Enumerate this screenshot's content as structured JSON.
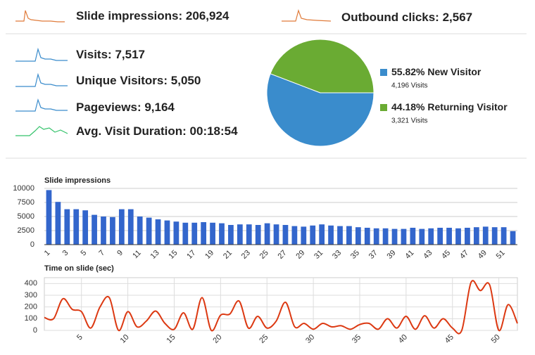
{
  "header": [
    {
      "label": "Slide impressions:",
      "value": "206,924"
    },
    {
      "label": "Outbound clicks:",
      "value": "2,567"
    }
  ],
  "metrics": [
    {
      "label": "Visits:",
      "value": "7,517"
    },
    {
      "label": "Unique Visitors:",
      "value": "5,050"
    },
    {
      "label": "Pageviews:",
      "value": "9,164"
    },
    {
      "label": "Avg. Visit Duration:",
      "value": "00:18:54"
    }
  ],
  "chart_data": [
    {
      "type": "pie",
      "categories": [
        "New Visitor",
        "Returning Visitor"
      ],
      "values": [
        55.82,
        44.18
      ],
      "value_labels": [
        "55.82%",
        "44.18%"
      ],
      "notes": [
        "4,196 Visits",
        "3,321 Visits"
      ],
      "colors": [
        "#3a8ccc",
        "#6aab33"
      ]
    },
    {
      "type": "bar",
      "title": "Slide impressions",
      "categories": [
        1,
        null,
        3,
        null,
        5,
        null,
        7,
        null,
        9,
        null,
        11,
        null,
        13,
        null,
        15,
        null,
        17,
        null,
        19,
        null,
        21,
        null,
        23,
        null,
        25,
        null,
        27,
        null,
        29,
        null,
        31,
        null,
        33,
        null,
        35,
        null,
        37,
        null,
        39,
        null,
        41,
        null,
        43,
        null,
        45,
        null,
        47,
        null,
        49,
        null,
        51,
        null
      ],
      "values": [
        9700,
        7600,
        6300,
        6300,
        6100,
        5300,
        5000,
        4900,
        6300,
        6300,
        5000,
        4800,
        4500,
        4300,
        4100,
        3900,
        3900,
        4000,
        3900,
        3800,
        3500,
        3600,
        3600,
        3500,
        3800,
        3600,
        3500,
        3300,
        3200,
        3400,
        3600,
        3400,
        3300,
        3300,
        3100,
        3000,
        2900,
        2900,
        2800,
        2800,
        3000,
        2800,
        2900,
        3000,
        3000,
        2900,
        3000,
        3100,
        3200,
        3100,
        3100,
        2400
      ],
      "color": "#3366cc",
      "ylim": [
        0,
        10000
      ],
      "yticks": [
        0,
        2500,
        5000,
        7500,
        10000
      ],
      "grid": true
    },
    {
      "type": "line",
      "title": "Time on slide (sec)",
      "x": [
        1,
        2,
        3,
        4,
        5,
        6,
        7,
        8,
        9,
        10,
        11,
        12,
        13,
        14,
        15,
        16,
        17,
        18,
        19,
        20,
        21,
        22,
        23,
        24,
        25,
        26,
        27,
        28,
        29,
        30,
        31,
        32,
        33,
        34,
        35,
        36,
        37,
        38,
        39,
        40,
        41,
        42,
        43,
        44,
        45,
        46,
        47,
        48,
        49,
        50,
        51,
        52
      ],
      "values": [
        110,
        100,
        270,
        180,
        160,
        20,
        200,
        280,
        0,
        160,
        30,
        80,
        165,
        60,
        10,
        150,
        10,
        280,
        0,
        130,
        140,
        250,
        20,
        120,
        20,
        80,
        240,
        30,
        60,
        10,
        60,
        30,
        40,
        10,
        50,
        60,
        10,
        100,
        20,
        120,
        10,
        125,
        20,
        100,
        20,
        0,
        410,
        340,
        390,
        0,
        220,
        60
      ],
      "color": "#dc3912",
      "xlim": [
        1,
        52
      ],
      "ylim": [
        0,
        450
      ],
      "xticks": [
        5,
        10,
        15,
        20,
        25,
        30,
        35,
        40,
        45,
        50
      ],
      "yticks": [
        0,
        100,
        200,
        300,
        400
      ],
      "grid": true
    }
  ]
}
